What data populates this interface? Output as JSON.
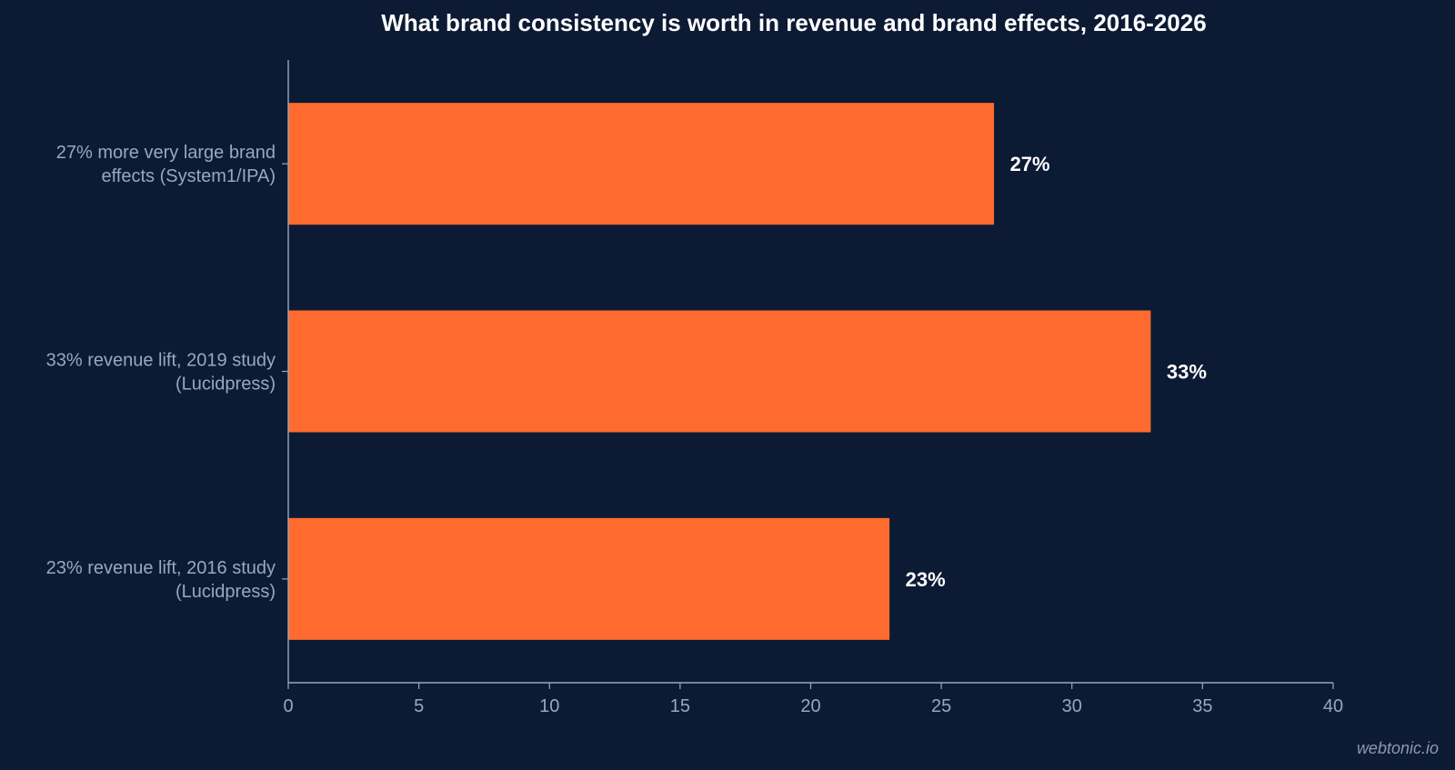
{
  "chart_data": {
    "type": "bar",
    "orientation": "horizontal",
    "title": "What brand consistency is worth in revenue and brand effects, 2016-2026",
    "categories": [
      [
        "27% more very large brand",
        "effects (System1/IPA)"
      ],
      [
        "33% revenue lift, 2019 study",
        "(Lucidpress)"
      ],
      [
        "23% revenue lift, 2016 study",
        "(Lucidpress)"
      ]
    ],
    "values": [
      27,
      33,
      23
    ],
    "value_labels": [
      "27%",
      "33%",
      "23%"
    ],
    "xlim": [
      0,
      40
    ],
    "xticks": [
      0,
      5,
      10,
      15,
      20,
      25,
      30,
      35,
      40
    ],
    "xlabel": "",
    "ylabel": "",
    "grid": false,
    "bar_color": "#ff6b2f",
    "background_color": "#0c1a33",
    "axis_color": "#9aa8bd"
  },
  "watermark": "webtonic.io"
}
